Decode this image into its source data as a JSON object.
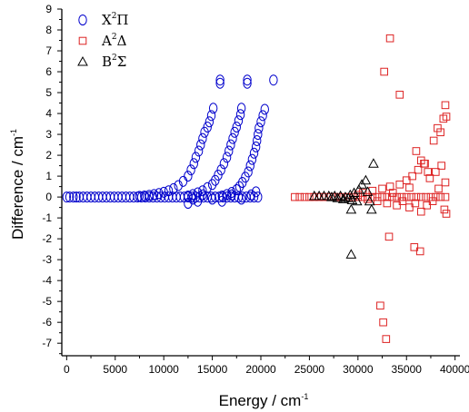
{
  "chart_data": {
    "type": "scatter",
    "title": "",
    "xlabel": "Energy / cm",
    "xlabel_sup": "-1",
    "ylabel": "Difference / cm",
    "ylabel_sup": "-1",
    "xlim": [
      -500,
      40500
    ],
    "ylim": [
      -7.6,
      9
    ],
    "xticks": [
      0,
      5000,
      10000,
      15000,
      20000,
      25000,
      30000,
      35000,
      40000
    ],
    "yticks": [
      -7,
      -6,
      -5,
      -4,
      -3,
      -2,
      -1,
      0,
      1,
      2,
      3,
      4,
      5,
      6,
      7,
      8,
      9
    ],
    "grid": false,
    "legend_position": "top-left",
    "series": [
      {
        "name": "X",
        "name_sup": "2",
        "name_symbol": "Π",
        "marker": "circle",
        "color": "#0000cc",
        "points": [
          [
            0,
            0
          ],
          [
            300,
            0
          ],
          [
            700,
            0
          ],
          [
            1000,
            0
          ],
          [
            1300,
            0
          ],
          [
            1700,
            0
          ],
          [
            2100,
            0
          ],
          [
            2500,
            0
          ],
          [
            2900,
            0
          ],
          [
            3300,
            0
          ],
          [
            3700,
            0
          ],
          [
            4100,
            0
          ],
          [
            4500,
            0
          ],
          [
            4900,
            0
          ],
          [
            5300,
            0
          ],
          [
            5700,
            0
          ],
          [
            6100,
            0
          ],
          [
            6500,
            0
          ],
          [
            6900,
            0
          ],
          [
            7300,
            0
          ],
          [
            7700,
            0
          ],
          [
            8100,
            0
          ],
          [
            8500,
            0
          ],
          [
            8900,
            0
          ],
          [
            9300,
            0
          ],
          [
            9700,
            0
          ],
          [
            10100,
            0
          ],
          [
            10500,
            0
          ],
          [
            10900,
            0
          ],
          [
            11300,
            0
          ],
          [
            11700,
            0
          ],
          [
            12100,
            0
          ],
          [
            12500,
            0
          ],
          [
            12900,
            0
          ],
          [
            13300,
            0
          ],
          [
            13700,
            0
          ],
          [
            14100,
            0
          ],
          [
            14500,
            0
          ],
          [
            14900,
            0
          ],
          [
            15300,
            0
          ],
          [
            15700,
            0
          ],
          [
            16100,
            0
          ],
          [
            16500,
            0
          ],
          [
            16900,
            0
          ],
          [
            17300,
            0
          ],
          [
            17700,
            0
          ],
          [
            18100,
            0
          ],
          [
            18500,
            0
          ],
          [
            18900,
            0
          ],
          [
            19300,
            0
          ],
          [
            19700,
            0
          ],
          [
            7500,
            0.03
          ],
          [
            8000,
            0.05
          ],
          [
            8500,
            0.08
          ],
          [
            9000,
            0.12
          ],
          [
            9500,
            0.17
          ],
          [
            10000,
            0.23
          ],
          [
            10500,
            0.3
          ],
          [
            11000,
            0.4
          ],
          [
            11500,
            0.55
          ],
          [
            12000,
            0.75
          ],
          [
            12500,
            1.0
          ],
          [
            12800,
            1.3
          ],
          [
            13100,
            1.6
          ],
          [
            13300,
            1.9
          ],
          [
            13600,
            2.2
          ],
          [
            13800,
            2.5
          ],
          [
            14000,
            2.8
          ],
          [
            14200,
            3.1
          ],
          [
            14500,
            3.35
          ],
          [
            14700,
            3.6
          ],
          [
            14900,
            3.9
          ],
          [
            15100,
            4.25
          ],
          [
            15800,
            5.45
          ],
          [
            15800,
            5.6
          ],
          [
            12500,
            0.05
          ],
          [
            13000,
            0.12
          ],
          [
            13500,
            0.2
          ],
          [
            14000,
            0.3
          ],
          [
            14500,
            0.45
          ],
          [
            15000,
            0.6
          ],
          [
            15300,
            0.8
          ],
          [
            15600,
            1.05
          ],
          [
            15900,
            1.3
          ],
          [
            16200,
            1.6
          ],
          [
            16500,
            1.9
          ],
          [
            16700,
            2.2
          ],
          [
            16900,
            2.5
          ],
          [
            17100,
            2.8
          ],
          [
            17300,
            3.1
          ],
          [
            17500,
            3.35
          ],
          [
            17700,
            3.65
          ],
          [
            17900,
            3.95
          ],
          [
            18000,
            4.25
          ],
          [
            18600,
            5.45
          ],
          [
            18600,
            5.6
          ],
          [
            16000,
            0.05
          ],
          [
            16500,
            0.12
          ],
          [
            17000,
            0.22
          ],
          [
            17500,
            0.35
          ],
          [
            17800,
            0.5
          ],
          [
            18100,
            0.7
          ],
          [
            18400,
            0.95
          ],
          [
            18700,
            1.2
          ],
          [
            18900,
            1.5
          ],
          [
            19100,
            1.8
          ],
          [
            19300,
            2.1
          ],
          [
            19500,
            2.4
          ],
          [
            19600,
            2.7
          ],
          [
            19700,
            3.0
          ],
          [
            19800,
            3.3
          ],
          [
            20000,
            3.6
          ],
          [
            20200,
            3.9
          ],
          [
            20400,
            4.2
          ],
          [
            21300,
            5.6
          ],
          [
            12500,
            -0.3
          ],
          [
            13000,
            -0.1
          ],
          [
            13500,
            -0.2
          ],
          [
            14000,
            0.1
          ],
          [
            15000,
            -0.1
          ],
          [
            16000,
            -0.2
          ],
          [
            17000,
            0.1
          ],
          [
            18000,
            -0.1
          ],
          [
            19000,
            0.1
          ],
          [
            19500,
            0.25
          ]
        ]
      },
      {
        "name": "A",
        "name_sup": "2",
        "name_symbol": "Δ",
        "marker": "square",
        "color": "#dd2222",
        "points": [
          [
            23500,
            0
          ],
          [
            24000,
            0
          ],
          [
            24500,
            0
          ],
          [
            25000,
            0
          ],
          [
            25500,
            0
          ],
          [
            26000,
            0
          ],
          [
            26500,
            0
          ],
          [
            27000,
            0
          ],
          [
            27500,
            0
          ],
          [
            28000,
            0
          ],
          [
            28500,
            0
          ],
          [
            29000,
            0
          ],
          [
            29500,
            0
          ],
          [
            30000,
            0
          ],
          [
            30500,
            0
          ],
          [
            31000,
            0
          ],
          [
            31500,
            0
          ],
          [
            32000,
            0
          ],
          [
            32500,
            0
          ],
          [
            33000,
            0
          ],
          [
            33500,
            0
          ],
          [
            34000,
            0
          ],
          [
            34500,
            0
          ],
          [
            35000,
            0
          ],
          [
            35500,
            0
          ],
          [
            36000,
            0
          ],
          [
            36500,
            0
          ],
          [
            37000,
            0
          ],
          [
            37500,
            0
          ],
          [
            38000,
            0
          ],
          [
            38500,
            0
          ],
          [
            39000,
            0
          ],
          [
            30000,
            0.1
          ],
          [
            30500,
            0.2
          ],
          [
            31000,
            -0.1
          ],
          [
            31500,
            0.3
          ],
          [
            32000,
            -0.2
          ],
          [
            32500,
            0.4
          ],
          [
            33000,
            -0.3
          ],
          [
            33300,
            0.5
          ],
          [
            33600,
            0.2
          ],
          [
            34000,
            -0.4
          ],
          [
            34300,
            0.6
          ],
          [
            34600,
            -0.2
          ],
          [
            35000,
            0.8
          ],
          [
            35300,
            -0.5
          ],
          [
            35600,
            1.0
          ],
          [
            35900,
            -0.3
          ],
          [
            36200,
            1.3
          ],
          [
            36500,
            -0.7
          ],
          [
            36800,
            1.6
          ],
          [
            37100,
            -0.4
          ],
          [
            37400,
            0.9
          ],
          [
            37700,
            -0.2
          ],
          [
            38000,
            1.2
          ],
          [
            38300,
            0.4
          ],
          [
            38600,
            1.5
          ],
          [
            38900,
            -0.6
          ],
          [
            39000,
            0.7
          ],
          [
            39100,
            -0.8
          ],
          [
            32700,
            6.0
          ],
          [
            33300,
            7.6
          ],
          [
            34300,
            4.9
          ],
          [
            33200,
            -1.9
          ],
          [
            32300,
            -5.2
          ],
          [
            32600,
            -6.0
          ],
          [
            32900,
            -6.8
          ],
          [
            35800,
            -2.4
          ],
          [
            36400,
            -2.6
          ],
          [
            35300,
            0.45
          ],
          [
            36000,
            2.2
          ],
          [
            36500,
            1.75
          ],
          [
            37200,
            1.2
          ],
          [
            37800,
            2.7
          ],
          [
            38200,
            3.3
          ],
          [
            38500,
            3.1
          ],
          [
            38800,
            3.75
          ],
          [
            39000,
            4.4
          ],
          [
            39100,
            3.85
          ],
          [
            36900,
            1.6
          ]
        ]
      },
      {
        "name": "B",
        "name_sup": "2",
        "name_symbol": "Σ",
        "marker": "triangle",
        "color": "#000000",
        "points": [
          [
            25500,
            0.05
          ],
          [
            26000,
            0.05
          ],
          [
            26500,
            0.05
          ],
          [
            27000,
            0.05
          ],
          [
            27300,
            0.0
          ],
          [
            27600,
            0.05
          ],
          [
            27900,
            -0.05
          ],
          [
            28200,
            0.05
          ],
          [
            28500,
            -0.1
          ],
          [
            28700,
            0.0
          ],
          [
            29000,
            -0.05
          ],
          [
            29200,
            0.1
          ],
          [
            29400,
            -0.15
          ],
          [
            29600,
            0.2
          ],
          [
            29900,
            -0.2
          ],
          [
            30100,
            0.35
          ],
          [
            30400,
            0.6
          ],
          [
            30800,
            0.8
          ],
          [
            31000,
            0.25
          ],
          [
            31200,
            -0.2
          ],
          [
            31600,
            1.6
          ],
          [
            29300,
            -0.6
          ],
          [
            31400,
            -0.6
          ],
          [
            29300,
            -2.75
          ]
        ]
      }
    ]
  }
}
